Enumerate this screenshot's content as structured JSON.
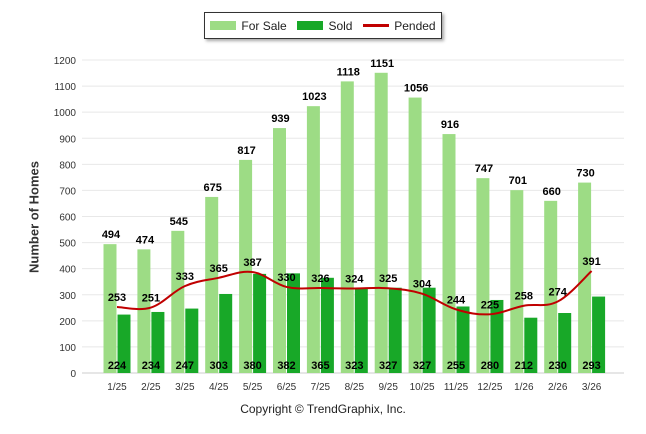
{
  "legend": {
    "for_sale": "For Sale",
    "sold": "Sold",
    "pended": "Pended"
  },
  "footer": {
    "copyright": "Copyright © TrendGraphix, Inc."
  },
  "colors": {
    "for_sale": "#9ddc85",
    "sold": "#18a828",
    "pended": "#c00000",
    "grid": "#e8e8e8"
  },
  "chart_data": {
    "type": "bar",
    "ylabel": "Number of Homes",
    "xlabel": "",
    "ylim": [
      0,
      1200
    ],
    "yticks": [
      0,
      100,
      200,
      300,
      400,
      500,
      600,
      700,
      800,
      900,
      1000,
      1100,
      1200
    ],
    "grid": true,
    "legend_position": "top-center",
    "categories": [
      "1/25",
      "2/25",
      "3/25",
      "4/25",
      "5/25",
      "6/25",
      "7/25",
      "8/25",
      "9/25",
      "10/25",
      "11/25",
      "12/25",
      "1/26",
      "2/26",
      "3/26"
    ],
    "series": [
      {
        "name": "For Sale",
        "kind": "bar",
        "values": [
          494,
          474,
          545,
          675,
          817,
          939,
          1023,
          1118,
          1151,
          1056,
          916,
          747,
          701,
          660,
          730
        ]
      },
      {
        "name": "Sold",
        "kind": "bar",
        "values": [
          224,
          234,
          247,
          303,
          380,
          382,
          365,
          323,
          327,
          327,
          255,
          280,
          212,
          230,
          293
        ]
      },
      {
        "name": "Pended",
        "kind": "line",
        "values": [
          253,
          251,
          333,
          365,
          387,
          330,
          326,
          324,
          325,
          304,
          244,
          225,
          258,
          274,
          391
        ]
      }
    ]
  }
}
